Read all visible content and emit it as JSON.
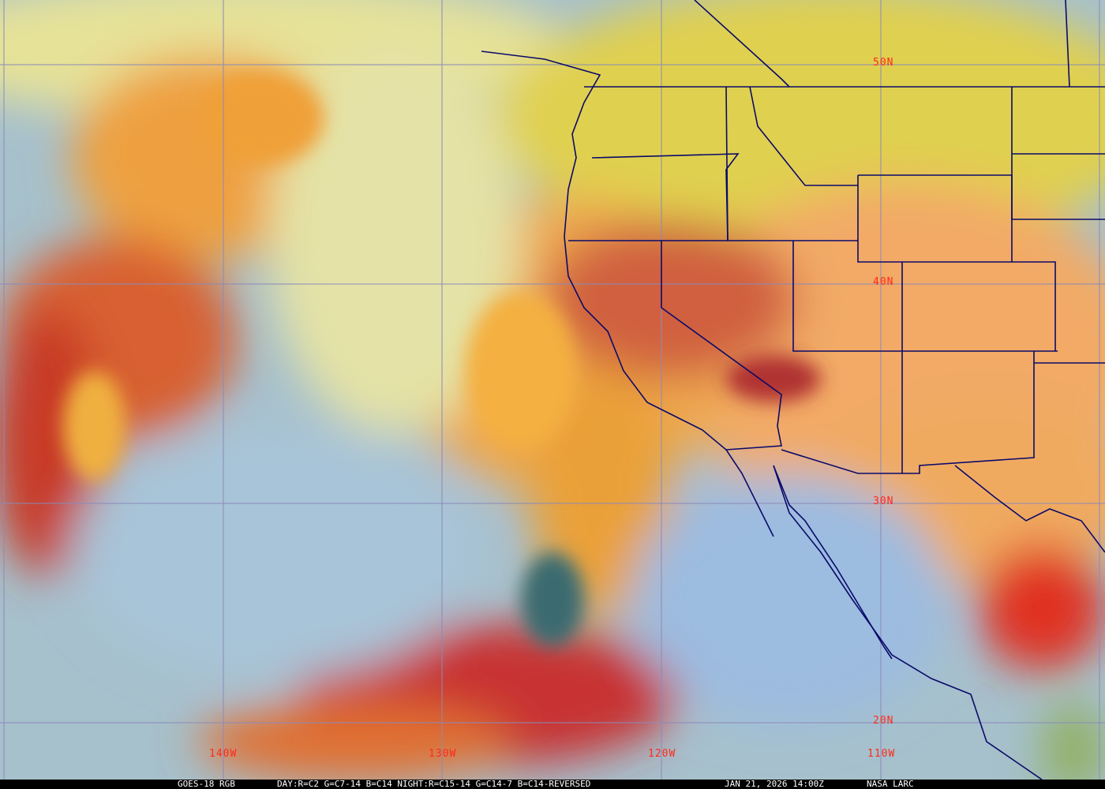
{
  "map": {
    "latitude_labels": [
      "50N",
      "40N",
      "30N",
      "20N"
    ],
    "longitude_labels": [
      "140W",
      "130W",
      "120W",
      "110W"
    ],
    "colors": {
      "grid": "#8a8ab8",
      "borders": "#0a0a6a",
      "labels": "#ff2a1a",
      "ocean": "#9fbcd6",
      "cloud_high": "#f0a040",
      "cloud_cold": "#d8202a",
      "low_cloud": "#e8e890"
    }
  },
  "footer": {
    "product": "GOES-18 RGB",
    "recipe": "DAY:R=C2 G=C7-14 B=C14 NIGHT:R=C15-14 G=C14-7 B=C14-REVERSED",
    "timestamp": "JAN 21, 2026 14:00Z",
    "credit": "NASA LARC"
  }
}
